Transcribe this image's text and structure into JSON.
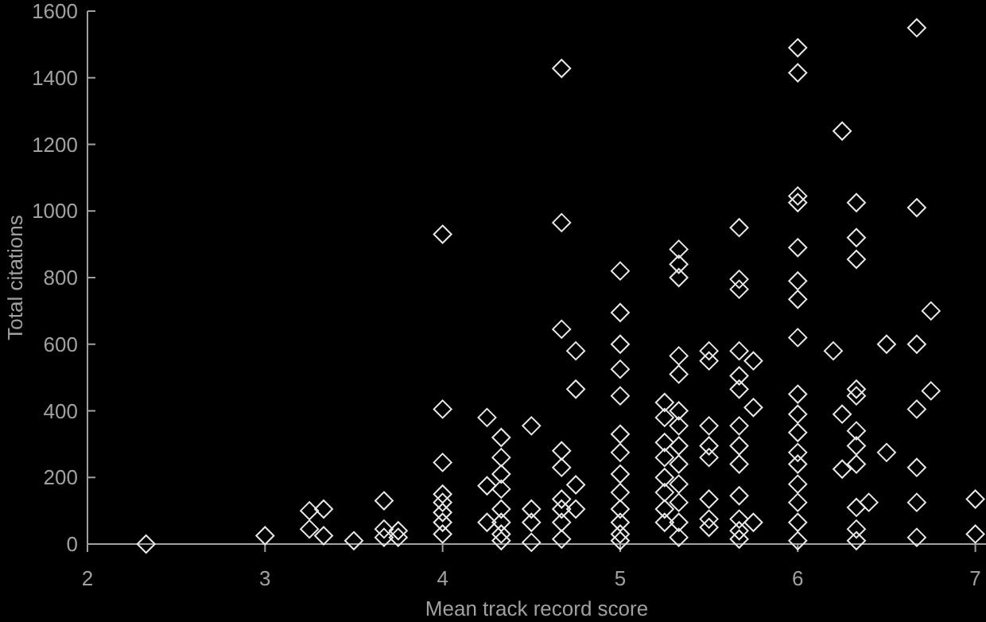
{
  "chart_data": {
    "type": "scatter",
    "xlabel": "Mean track record score",
    "ylabel": "Total citations",
    "xlim": [
      2,
      7.06
    ],
    "ylim": [
      0,
      1600
    ],
    "xticks": [
      2,
      3,
      4,
      5,
      6,
      7
    ],
    "yticks": [
      0,
      200,
      400,
      600,
      800,
      1000,
      1200,
      1400,
      1600
    ],
    "grid": false,
    "marker": "diamond",
    "series": [
      {
        "color": "#e8e8e8",
        "x": [
          2.33,
          3,
          3.25,
          3.25,
          3.33,
          3.33,
          3.5,
          3.67,
          3.67,
          3.67,
          3.75,
          3.75,
          4,
          4,
          4,
          4,
          4,
          4,
          4,
          4,
          4.25,
          4.25,
          4.25,
          4.33,
          4.33,
          4.33,
          4.33,
          4.33,
          4.33,
          4.33,
          4.33,
          4.5,
          4.5,
          4.5,
          4.5,
          4.67,
          4.67,
          4.67,
          4.67,
          4.67,
          4.67,
          4.67,
          4.67,
          4.67,
          4.75,
          4.75,
          4.75,
          4.75,
          5,
          5,
          5,
          5,
          5,
          5,
          5,
          5,
          5,
          5,
          5,
          5,
          5,
          5.25,
          5.25,
          5.25,
          5.25,
          5.25,
          5.25,
          5.25,
          5.25,
          5.33,
          5.33,
          5.33,
          5.33,
          5.33,
          5.33,
          5.33,
          5.33,
          5.33,
          5.33,
          5.33,
          5.33,
          5.33,
          5.5,
          5.5,
          5.5,
          5.5,
          5.5,
          5.5,
          5.5,
          5.5,
          5.67,
          5.67,
          5.67,
          5.67,
          5.67,
          5.67,
          5.67,
          5.67,
          5.67,
          5.67,
          5.67,
          5.67,
          5.67,
          5.75,
          5.75,
          5.75,
          6,
          6,
          6,
          6,
          6,
          6,
          6,
          6,
          6,
          6,
          6,
          6,
          6,
          6,
          6,
          6,
          6,
          6.2,
          6.25,
          6.25,
          6.25,
          6.33,
          6.33,
          6.33,
          6.33,
          6.33,
          6.33,
          6.33,
          6.33,
          6.33,
          6.33,
          6.33,
          6.4,
          6.5,
          6.5,
          6.67,
          6.67,
          6.67,
          6.67,
          6.67,
          6.67,
          6.67,
          6.75,
          6.75,
          7,
          7
        ],
        "values": [
          0,
          25,
          100,
          45,
          105,
          25,
          10,
          130,
          45,
          20,
          40,
          20,
          930,
          405,
          245,
          150,
          125,
          95,
          65,
          30,
          380,
          175,
          65,
          320,
          260,
          210,
          165,
          105,
          65,
          30,
          10,
          355,
          105,
          65,
          5,
          1428,
          965,
          645,
          280,
          230,
          135,
          105,
          65,
          15,
          580,
          465,
          178,
          105,
          820,
          695,
          600,
          525,
          445,
          330,
          275,
          210,
          155,
          105,
          65,
          30,
          10,
          425,
          380,
          305,
          260,
          200,
          155,
          105,
          65,
          885,
          840,
          800,
          565,
          510,
          400,
          355,
          295,
          240,
          180,
          125,
          65,
          20,
          580,
          550,
          355,
          295,
          260,
          135,
          75,
          50,
          950,
          795,
          765,
          580,
          505,
          465,
          355,
          295,
          240,
          145,
          75,
          40,
          15,
          550,
          410,
          65,
          1490,
          1415,
          1045,
          1025,
          890,
          790,
          735,
          620,
          450,
          390,
          335,
          275,
          240,
          180,
          125,
          65,
          10,
          580,
          1240,
          390,
          225,
          1025,
          920,
          855,
          465,
          445,
          340,
          295,
          240,
          110,
          45,
          10,
          125,
          600,
          275,
          1550,
          1010,
          600,
          405,
          230,
          125,
          20,
          700,
          460,
          135,
          30
        ]
      }
    ]
  }
}
